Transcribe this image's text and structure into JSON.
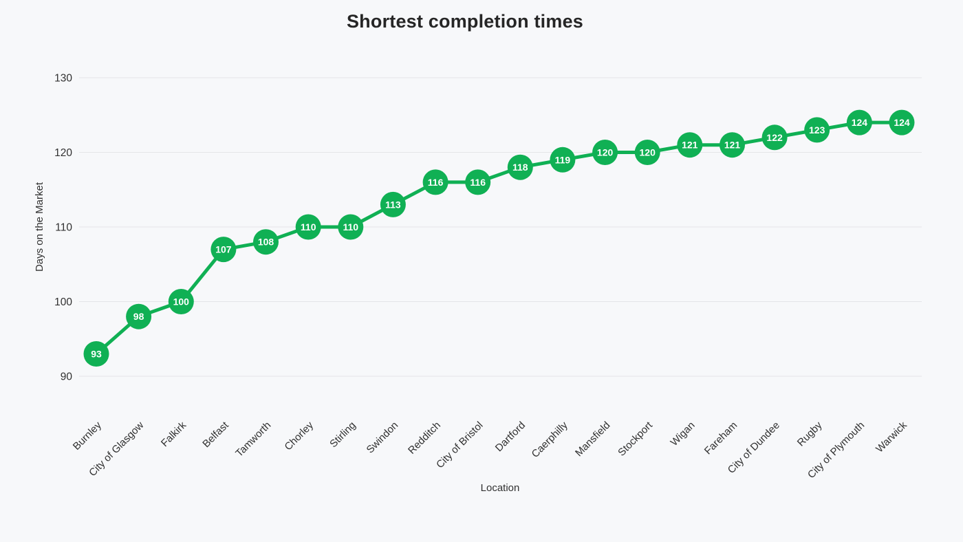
{
  "page": {
    "background": "#f7f8fa"
  },
  "chart_data": {
    "type": "line",
    "title": "Shortest completion times",
    "xlabel": "Location",
    "ylabel": "Days on the Market",
    "categories": [
      "Burnley",
      "City of Glasgow",
      "Falkirk",
      "Belfast",
      "Tamworth",
      "Chorley",
      "Stirling",
      "Swindon",
      "Redditch",
      "City of Bristol",
      "Dartford",
      "Caerphilly",
      "Mansfield",
      "Stockport",
      "Wigan",
      "Fareham",
      "City of Dundee",
      "Rugby",
      "City of Plymouth",
      "Warwick"
    ],
    "values": [
      93,
      98,
      100,
      107,
      108,
      110,
      110,
      113,
      116,
      116,
      118,
      119,
      120,
      120,
      121,
      121,
      122,
      123,
      124,
      124
    ],
    "yticks": [
      130,
      120,
      110,
      100,
      90
    ],
    "ylim": [
      90,
      130
    ],
    "grid": true,
    "legend": false,
    "data_labels": "inside-marker",
    "x_label_rotation_deg": -45,
    "colors": {
      "series": "#10b054",
      "data_label_text": "#ffffff",
      "grid": "#e4e5e8",
      "axis_text": "#303030",
      "title_text": "#262626",
      "background": "#f7f8fa"
    }
  }
}
